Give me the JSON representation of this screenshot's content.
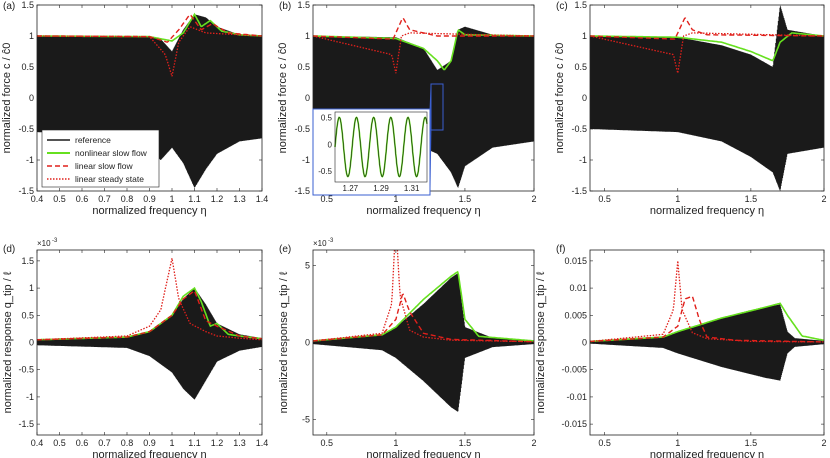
{
  "figure": {
    "legend": {
      "entries": [
        {
          "label": "reference",
          "color": "#1a1a1a",
          "style": "solid"
        },
        {
          "label": "nonlinear slow flow",
          "color": "#66e01f",
          "style": "solid"
        },
        {
          "label": "linear slow flow",
          "color": "#e0201b",
          "style": "dashed"
        },
        {
          "label": "linear steady state",
          "color": "#e0201b",
          "style": "dotted"
        }
      ]
    },
    "colors": {
      "reference": "#1a1a1a",
      "nonlinear": "#66e01f",
      "linear": "#e0201b",
      "inset_frame": "#3a5fd0"
    }
  },
  "chart_data": [
    {
      "panel": "(a)",
      "type": "line",
      "xlabel": "normalized frequency η",
      "ylabel": "normalized force c / ĉ0",
      "xlim": [
        0.4,
        1.4
      ],
      "ylim": [
        -1.5,
        1.5
      ],
      "xticks": [
        "0.4",
        "0.5",
        "0.6",
        "0.7",
        "0.8",
        "0.9",
        "1",
        "1.1",
        "1.2",
        "1.3",
        "1.4"
      ],
      "yticks": [
        "-1.5",
        "-1",
        "-0.5",
        "0",
        "0.5",
        "1",
        "1.5"
      ],
      "legend_placement": "bottom-left",
      "series": [
        {
          "name": "reference",
          "x": [
            0.4,
            0.8,
            0.9,
            0.95,
            1.0,
            1.05,
            1.1,
            1.15,
            1.2,
            1.3,
            1.4
          ],
          "y_upper": [
            1,
            1,
            1,
            0.95,
            0.75,
            1.1,
            1.35,
            1.3,
            1.15,
            1.02,
            1.0
          ],
          "y_lower": [
            -0.55,
            -0.6,
            -0.85,
            -1.0,
            -0.8,
            -1.05,
            -1.45,
            -1.15,
            -0.9,
            -0.7,
            -0.65
          ]
        },
        {
          "name": "nonlinear slow flow",
          "x": [
            0.4,
            0.9,
            1.0,
            1.05,
            1.1,
            1.13,
            1.17,
            1.22,
            1.3,
            1.4
          ],
          "y": [
            1,
            0.99,
            0.92,
            1.05,
            1.35,
            1.15,
            1.25,
            1.08,
            1.02,
            1.0
          ]
        },
        {
          "name": "linear slow flow",
          "x": [
            0.4,
            0.9,
            0.98,
            1.03,
            1.08,
            1.13,
            1.18,
            1.25,
            1.4
          ],
          "y": [
            1,
            0.99,
            0.9,
            1.1,
            1.35,
            1.1,
            1.2,
            1.05,
            1.0
          ]
        },
        {
          "name": "linear steady state",
          "x": [
            0.4,
            0.9,
            0.97,
            1.0,
            1.03,
            1.08,
            1.15,
            1.4
          ],
          "y": [
            1,
            0.99,
            0.7,
            0.35,
            0.9,
            1.15,
            1.05,
            1.0
          ]
        }
      ]
    },
    {
      "panel": "(b)",
      "type": "line",
      "xlabel": "normalized frequency η",
      "ylabel": "normalized force c / ĉ0",
      "xlim": [
        0.4,
        2
      ],
      "ylim": [
        -1.5,
        1.5
      ],
      "xticks": [
        "0.5",
        "1",
        "1.5",
        "2"
      ],
      "yticks": [
        "-1.5",
        "-1",
        "-0.5",
        "0",
        "0.5",
        "1",
        "1.5"
      ],
      "inset": {
        "xlim": [
          1.26,
          1.32
        ],
        "ylim": [
          -0.7,
          0.6
        ],
        "xticks": [
          "1.27",
          "1.29",
          "1.31"
        ],
        "yticks": [
          "0.5",
          "0",
          "-0.5"
        ]
      },
      "series": [
        {
          "name": "reference",
          "x": [
            0.4,
            1.0,
            1.2,
            1.3,
            1.4,
            1.45,
            1.5,
            1.7,
            2.0
          ],
          "y_upper": [
            1,
            0.98,
            0.8,
            0.45,
            0.6,
            1.1,
            1.15,
            1.02,
            1.0
          ],
          "y_lower": [
            -0.5,
            -0.55,
            -0.8,
            -0.9,
            -1.2,
            -1.45,
            -1.1,
            -0.8,
            -0.7
          ]
        },
        {
          "name": "nonlinear slow flow",
          "x": [
            0.4,
            1.0,
            1.2,
            1.3,
            1.35,
            1.4,
            1.45,
            1.5,
            2.0
          ],
          "y": [
            1,
            0.96,
            0.8,
            0.6,
            0.45,
            0.6,
            1.1,
            1.02,
            1.0
          ]
        },
        {
          "name": "linear slow flow",
          "x": [
            0.4,
            0.98,
            1.05,
            1.1,
            1.2,
            1.3,
            2.0
          ],
          "y": [
            1,
            0.95,
            1.3,
            1.1,
            1.05,
            1.0,
            1.0
          ]
        },
        {
          "name": "linear steady state",
          "x": [
            0.4,
            0.97,
            1.0,
            1.04,
            1.1,
            2.0
          ],
          "y": [
            1,
            0.7,
            0.4,
            1.0,
            1.05,
            1.0
          ]
        }
      ]
    },
    {
      "panel": "(c)",
      "type": "line",
      "xlabel": "normalized frequency η",
      "ylabel": "normalized force c / ĉ0",
      "xlim": [
        0.4,
        2
      ],
      "ylim": [
        -1.5,
        1.5
      ],
      "xticks": [
        "0.5",
        "1",
        "1.5",
        "2"
      ],
      "yticks": [
        "-1.5",
        "-1",
        "-0.5",
        "0",
        "0.5",
        "1",
        "1.5"
      ],
      "series": [
        {
          "name": "reference",
          "x": [
            0.4,
            1.0,
            1.3,
            1.5,
            1.65,
            1.7,
            1.75,
            2.0
          ],
          "y_upper": [
            1,
            0.98,
            0.85,
            0.7,
            0.5,
            1.5,
            1.1,
            1.0
          ],
          "y_lower": [
            -0.5,
            -0.55,
            -0.7,
            -0.95,
            -1.2,
            -1.5,
            -0.9,
            -0.8
          ]
        },
        {
          "name": "nonlinear slow flow",
          "x": [
            0.4,
            1.0,
            1.3,
            1.5,
            1.65,
            1.7,
            1.78,
            2.0
          ],
          "y": [
            1,
            0.98,
            0.9,
            0.75,
            0.6,
            0.9,
            1.05,
            1.0
          ]
        },
        {
          "name": "linear slow flow",
          "x": [
            0.4,
            0.98,
            1.05,
            1.1,
            1.2,
            2.0
          ],
          "y": [
            1,
            0.95,
            1.3,
            1.1,
            1.02,
            1.0
          ]
        },
        {
          "name": "linear steady state",
          "x": [
            0.4,
            0.97,
            1.0,
            1.04,
            1.1,
            2.0
          ],
          "y": [
            1,
            0.7,
            0.4,
            1.0,
            1.05,
            1.0
          ]
        }
      ]
    },
    {
      "panel": "(d)",
      "type": "line",
      "xlabel": "normalized frequency η",
      "ylabel": "normalized response q_tip / ℓ",
      "scale_note": "×10⁻³",
      "xlim": [
        0.4,
        1.4
      ],
      "ylim": [
        -1.7,
        1.7
      ],
      "xticks": [
        "0.4",
        "0.5",
        "0.6",
        "0.7",
        "0.8",
        "0.9",
        "1",
        "1.1",
        "1.2",
        "1.3",
        "1.4"
      ],
      "yticks": [
        "-1.5",
        "-1",
        "-0.5",
        "0",
        "0.5",
        "1",
        "1.5"
      ],
      "series": [
        {
          "name": "reference",
          "x": [
            0.4,
            0.8,
            0.9,
            1.0,
            1.05,
            1.1,
            1.15,
            1.2,
            1.3,
            1.4
          ],
          "y_upper": [
            0.05,
            0.1,
            0.2,
            0.5,
            0.8,
            1.0,
            0.7,
            0.35,
            0.15,
            0.08
          ],
          "y_lower": [
            -0.05,
            -0.1,
            -0.25,
            -0.55,
            -0.85,
            -1.05,
            -0.7,
            -0.35,
            -0.15,
            -0.08
          ]
        },
        {
          "name": "nonlinear slow flow",
          "x": [
            0.4,
            0.8,
            0.9,
            1.0,
            1.05,
            1.1,
            1.13,
            1.17,
            1.2,
            1.25,
            1.3,
            1.4
          ],
          "y": [
            0.05,
            0.1,
            0.2,
            0.5,
            0.85,
            1.0,
            0.75,
            0.3,
            0.35,
            0.15,
            0.12,
            0.07
          ]
        },
        {
          "name": "linear slow flow",
          "x": [
            0.4,
            0.8,
            0.9,
            1.0,
            1.05,
            1.1,
            1.15,
            1.2,
            1.3,
            1.4
          ],
          "y": [
            0.05,
            0.1,
            0.2,
            0.5,
            0.8,
            0.95,
            0.4,
            0.3,
            0.12,
            0.07
          ]
        },
        {
          "name": "linear steady state",
          "x": [
            0.4,
            0.8,
            0.9,
            0.95,
            1.0,
            1.03,
            1.08,
            1.15,
            1.2,
            1.3,
            1.4
          ],
          "y": [
            0.05,
            0.12,
            0.3,
            0.6,
            1.55,
            0.8,
            0.35,
            0.2,
            0.12,
            0.08,
            0.05
          ]
        }
      ]
    },
    {
      "panel": "(e)",
      "type": "line",
      "xlabel": "normalized frequency η",
      "ylabel": "normalized response q_tip / ℓ",
      "scale_note": "×10⁻³",
      "xlim": [
        0.4,
        2
      ],
      "ylim": [
        -6,
        6
      ],
      "xticks": [
        "0.5",
        "1",
        "1.5",
        "2"
      ],
      "yticks": [
        "-5",
        "0",
        "5"
      ],
      "series": [
        {
          "name": "reference",
          "x": [
            0.4,
            0.9,
            1.0,
            1.2,
            1.4,
            1.45,
            1.5,
            1.7,
            2.0
          ],
          "y_upper": [
            0.1,
            0.5,
            1.0,
            2.5,
            4.2,
            4.5,
            1.0,
            0.3,
            0.1
          ],
          "y_lower": [
            -0.1,
            -0.5,
            -1.0,
            -2.5,
            -4.2,
            -4.5,
            -1.0,
            -0.3,
            -0.1
          ]
        },
        {
          "name": "nonlinear slow flow",
          "x": [
            0.4,
            0.9,
            1.0,
            1.2,
            1.4,
            1.45,
            1.5,
            1.6,
            2.0
          ],
          "y": [
            0.1,
            0.5,
            1.0,
            2.8,
            4.3,
            4.6,
            1.5,
            0.4,
            0.1
          ]
        },
        {
          "name": "linear slow flow",
          "x": [
            0.4,
            0.9,
            1.0,
            1.05,
            1.1,
            1.2,
            1.4,
            2.0
          ],
          "y": [
            0.1,
            0.5,
            1.5,
            3.2,
            2.0,
            0.6,
            0.2,
            0.05
          ]
        },
        {
          "name": "linear steady state",
          "x": [
            0.4,
            0.9,
            0.97,
            1.0,
            1.03,
            1.1,
            1.2,
            1.4,
            2.0
          ],
          "y": [
            0.1,
            0.6,
            2.5,
            7.8,
            3.0,
            0.8,
            0.35,
            0.15,
            0.05
          ]
        }
      ]
    },
    {
      "panel": "(f)",
      "type": "line",
      "xlabel": "normalized frequency η",
      "ylabel": "normalized response q_tip / ℓ",
      "xlim": [
        0.4,
        2
      ],
      "ylim": [
        -0.017,
        0.017
      ],
      "xticks": [
        "0.5",
        "1",
        "1.5",
        "2"
      ],
      "yticks": [
        "-0.015",
        "-0.01",
        "-0.005",
        "0",
        "0.005",
        "0.01",
        "0.015"
      ],
      "series": [
        {
          "name": "reference",
          "x": [
            0.4,
            0.9,
            1.0,
            1.3,
            1.6,
            1.7,
            1.75,
            1.8,
            2.0
          ],
          "y_upper": [
            0.0002,
            0.001,
            0.002,
            0.0045,
            0.0065,
            0.007,
            0.002,
            0.0008,
            0.0003
          ],
          "y_lower": [
            -0.0002,
            -0.001,
            -0.002,
            -0.0045,
            -0.0065,
            -0.007,
            -0.002,
            -0.0008,
            -0.0003
          ]
        },
        {
          "name": "nonlinear slow flow",
          "x": [
            0.4,
            0.9,
            1.0,
            1.3,
            1.6,
            1.7,
            1.75,
            1.85,
            2.0
          ],
          "y": [
            0.0002,
            0.001,
            0.002,
            0.0045,
            0.0065,
            0.0072,
            0.005,
            0.0012,
            0.0004
          ]
        },
        {
          "name": "linear slow flow",
          "x": [
            0.4,
            0.9,
            1.0,
            1.05,
            1.1,
            1.15,
            1.2,
            1.4,
            2.0
          ],
          "y": [
            0.0002,
            0.001,
            0.003,
            0.008,
            0.0085,
            0.004,
            0.001,
            0.0004,
            0.0001
          ]
        },
        {
          "name": "linear steady state",
          "x": [
            0.4,
            0.9,
            0.97,
            1.0,
            1.03,
            1.1,
            1.2,
            1.5,
            2.0
          ],
          "y": [
            0.0002,
            0.0015,
            0.006,
            0.015,
            0.006,
            0.0018,
            0.0007,
            0.0002,
            0.0001
          ]
        }
      ]
    }
  ]
}
